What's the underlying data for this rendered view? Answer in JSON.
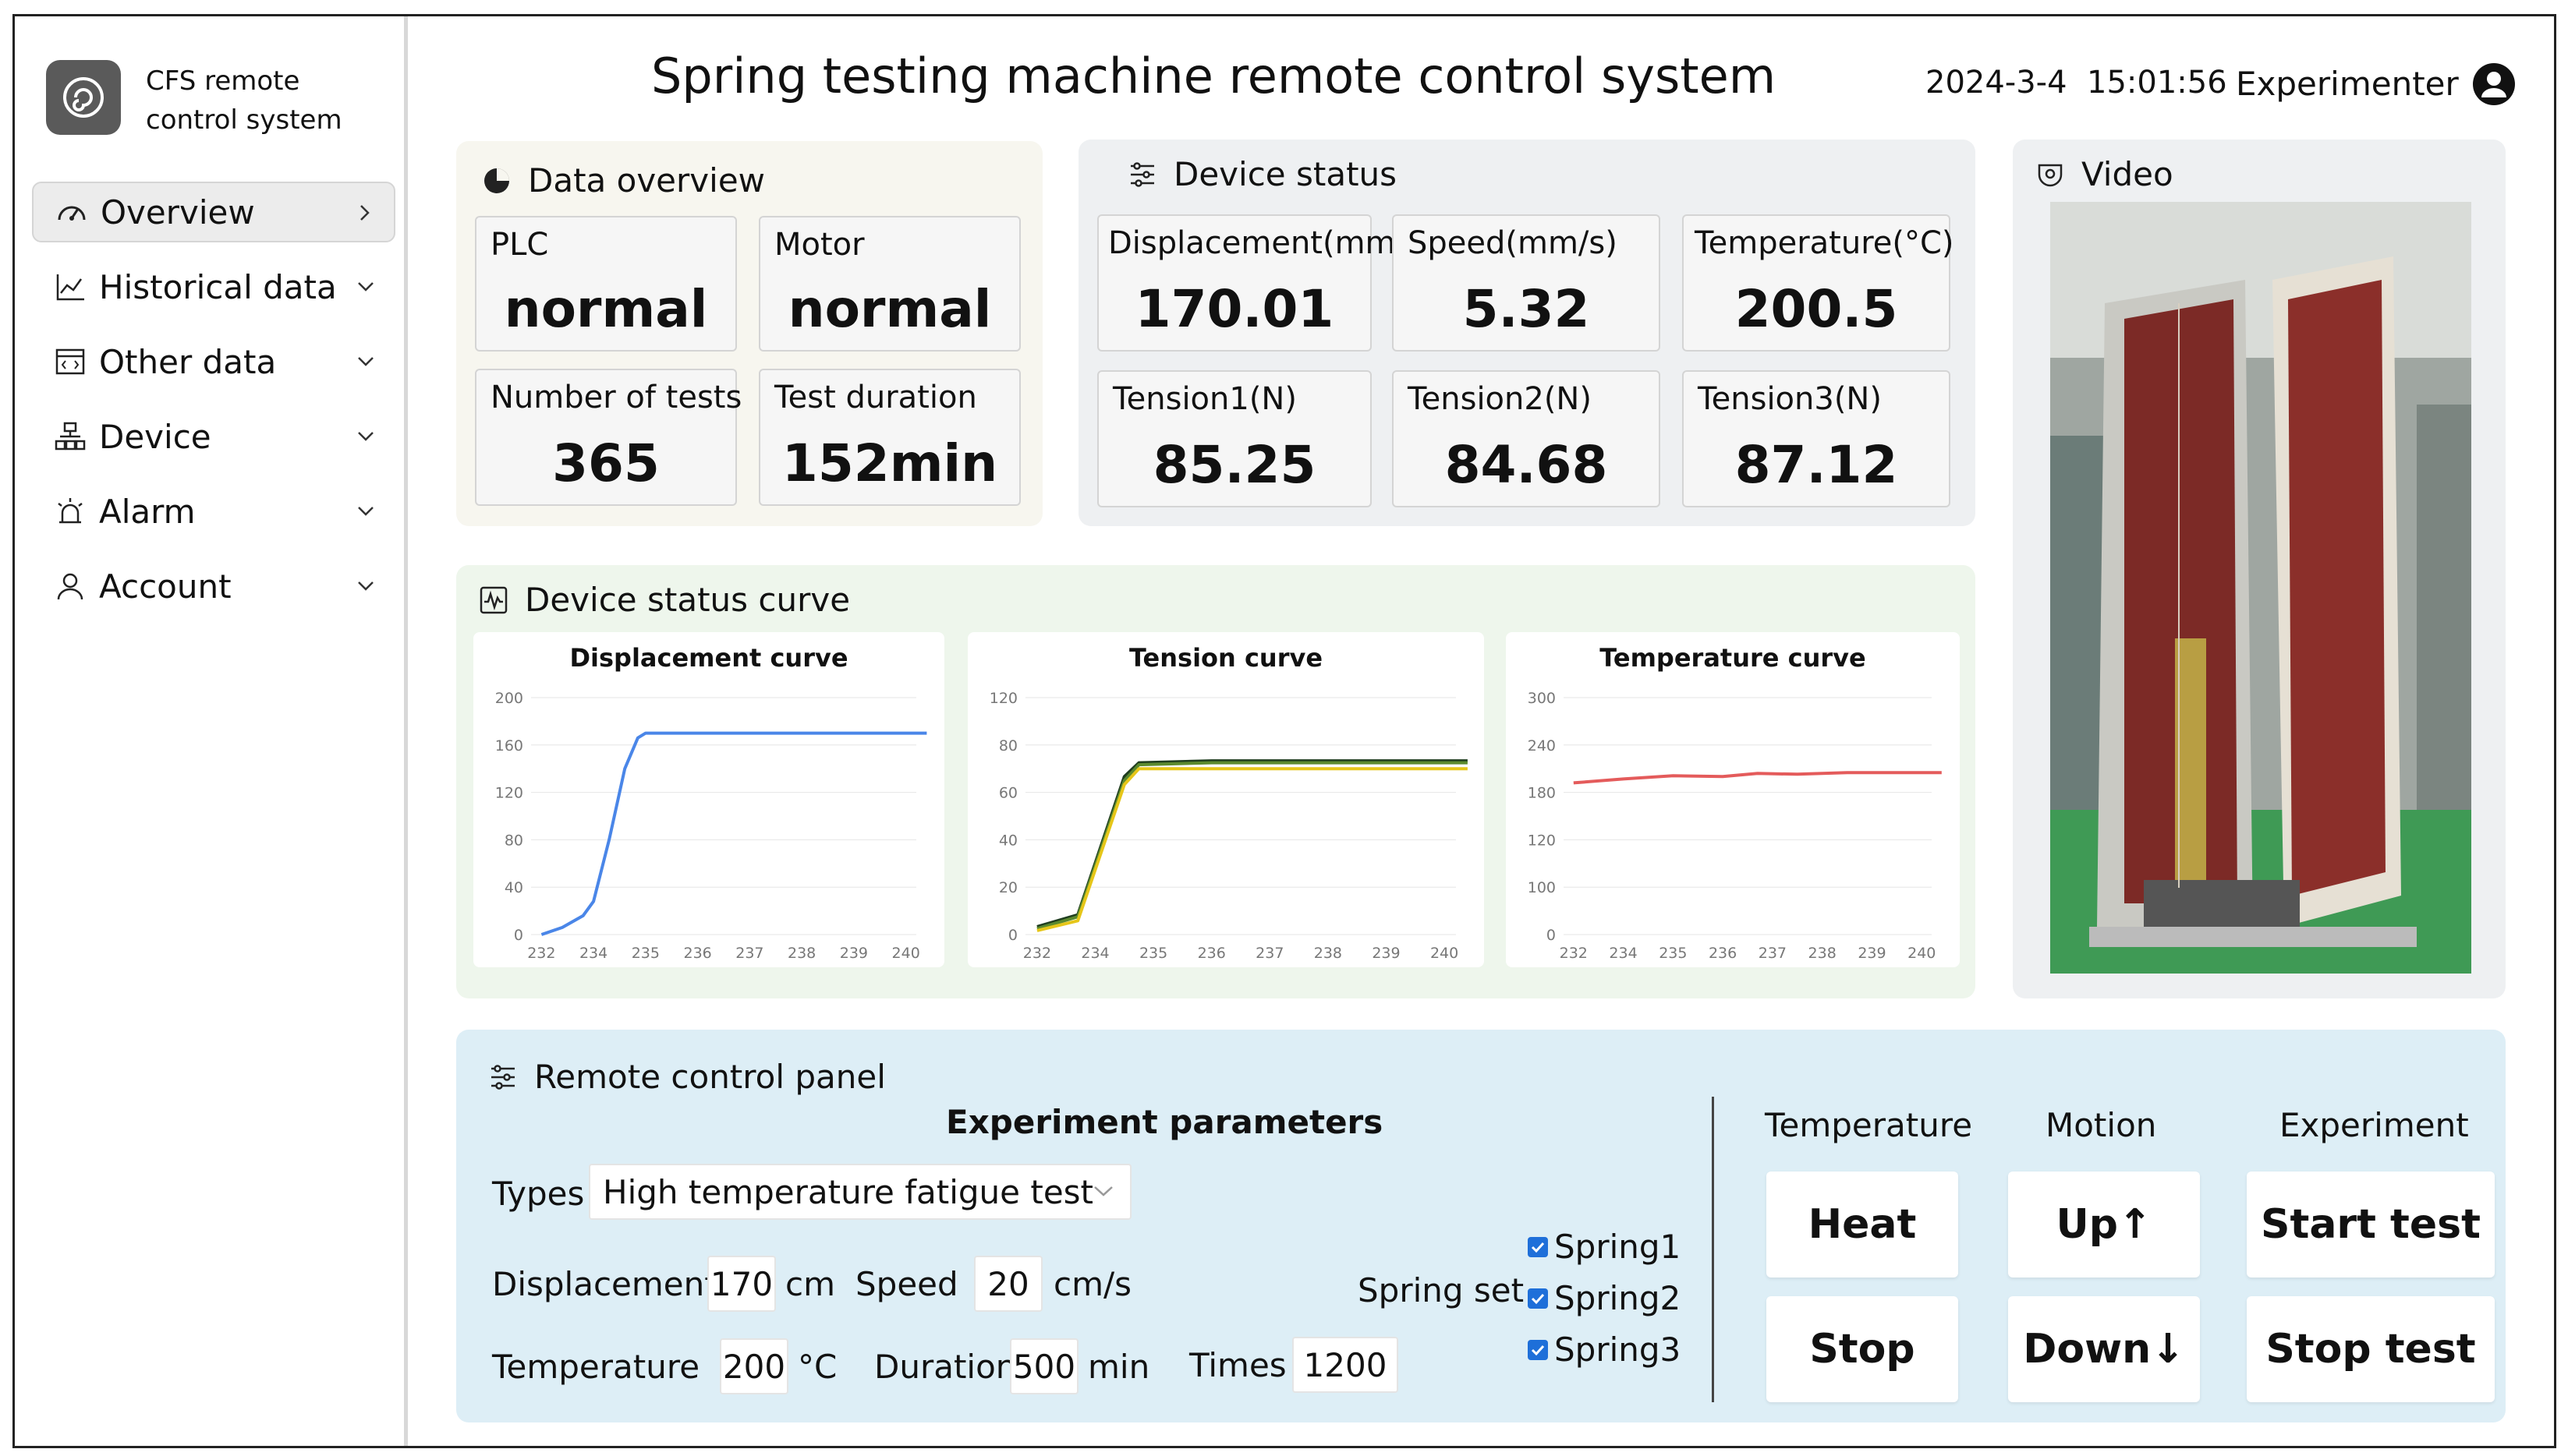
{
  "app": {
    "name": "CFS remote control system",
    "name_line1": "CFS remote",
    "name_line2": "control system",
    "title": "Spring testing machine remote control system"
  },
  "header": {
    "datetime": "2024-3-4  15:01:56",
    "user": "Experimenter"
  },
  "sidebar": {
    "items": [
      {
        "label": "Overview",
        "icon": "gauge-icon"
      },
      {
        "label": "Historical data",
        "icon": "line-chart-icon"
      },
      {
        "label": "Other data",
        "icon": "code-window-icon"
      },
      {
        "label": "Device",
        "icon": "network-icon"
      },
      {
        "label": "Alarm",
        "icon": "alarm-icon"
      },
      {
        "label": "Account",
        "icon": "user-icon"
      }
    ]
  },
  "data_overview": {
    "title": "Data overview",
    "cards": [
      {
        "label": "PLC",
        "value": "normal"
      },
      {
        "label": "Motor",
        "value": "normal"
      },
      {
        "label": "Number of tests",
        "value": "365"
      },
      {
        "label": "Test duration",
        "value": "152min"
      }
    ]
  },
  "device_status": {
    "title": "Device status",
    "cards": [
      {
        "label": "Displacement(mm)",
        "value": "170.01"
      },
      {
        "label": "Speed(mm/s)",
        "value": "5.32"
      },
      {
        "label": "Temperature(°C)",
        "value": "200.5"
      },
      {
        "label": "Tension1(N)",
        "value": "85.25"
      },
      {
        "label": "Tension2(N)",
        "value": "84.68"
      },
      {
        "label": "Tension3(N)",
        "value": "87.12"
      }
    ]
  },
  "video": {
    "title": "Video"
  },
  "curves": {
    "title": "Device status curve"
  },
  "chart_data": [
    {
      "type": "line",
      "title": "Displacement curve",
      "x_ticks": [
        "232",
        "234",
        "235",
        "236",
        "237",
        "238",
        "239",
        "240"
      ],
      "ylim": [
        0,
        200
      ],
      "y_ticks": [
        0,
        40,
        80,
        120,
        160,
        200
      ],
      "series": [
        {
          "name": "Displacement",
          "color": "#4a86e8",
          "points": [
            [
              0,
              0
            ],
            [
              0.4,
              6
            ],
            [
              0.8,
              16
            ],
            [
              1.0,
              28
            ],
            [
              1.3,
              80
            ],
            [
              1.6,
              140
            ],
            [
              1.85,
              166
            ],
            [
              2.0,
              170
            ],
            [
              2.5,
              170
            ],
            [
              4,
              170
            ],
            [
              7.4,
              170
            ]
          ]
        }
      ]
    },
    {
      "type": "line",
      "title": "Tension curve",
      "x_ticks": [
        "232",
        "234",
        "235",
        "236",
        "237",
        "238",
        "239",
        "240"
      ],
      "ylim": [
        0,
        120
      ],
      "y_ticks": [
        0,
        20,
        40,
        60,
        80,
        120
      ],
      "series": [
        {
          "name": "Tension1",
          "color": "#1f3d1f",
          "points": [
            [
              0,
              4
            ],
            [
              0.7,
              10
            ],
            [
              1.5,
              80
            ],
            [
              1.75,
              87
            ],
            [
              3,
              88
            ],
            [
              4.5,
              88
            ],
            [
              7.4,
              88
            ]
          ]
        },
        {
          "name": "Tension2",
          "color": "#5b8a2e",
          "points": [
            [
              0,
              3
            ],
            [
              0.7,
              9
            ],
            [
              1.5,
              78
            ],
            [
              1.75,
              86
            ],
            [
              3,
              87
            ],
            [
              4.5,
              87
            ],
            [
              7.4,
              87
            ]
          ]
        },
        {
          "name": "Tension3",
          "color": "#e6c619",
          "points": [
            [
              0,
              2
            ],
            [
              0.7,
              7
            ],
            [
              1.5,
              76
            ],
            [
              1.75,
              84
            ],
            [
              3,
              84
            ],
            [
              4.5,
              84
            ],
            [
              7.4,
              84
            ]
          ]
        }
      ]
    },
    {
      "type": "line",
      "title": "Temperature curve",
      "x_ticks": [
        "232",
        "234",
        "235",
        "236",
        "237",
        "238",
        "239",
        "240"
      ],
      "ylim": [
        0,
        300
      ],
      "y_ticks": [
        0,
        100,
        120,
        180,
        240,
        300
      ],
      "series": [
        {
          "name": "Temperature",
          "color": "#e45b5b",
          "points": [
            [
              0,
              192
            ],
            [
              1,
              197
            ],
            [
              2,
              201
            ],
            [
              3,
              200
            ],
            [
              3.7,
              204
            ],
            [
              4.5,
              203
            ],
            [
              5.5,
              205
            ],
            [
              6.5,
              205
            ],
            [
              7.4,
              205
            ]
          ]
        }
      ]
    }
  ],
  "control": {
    "title": "Remote control panel",
    "params_title": "Experiment parameters",
    "types_label": "Types",
    "types_value": "High temperature fatigue test",
    "displacement_label": "Displacement",
    "displacement_value": "170",
    "displacement_unit": "cm",
    "speed_label": "Speed",
    "speed_value": "20",
    "speed_unit": "cm/s",
    "temperature_label": "Temperature",
    "temperature_value": "200",
    "temperature_unit": "°C",
    "duration_label": "Duration",
    "duration_value": "500",
    "duration_unit": "min",
    "times_label": "Times",
    "times_value": "1200",
    "spring_set_label": "Spring set",
    "springs": [
      "Spring1",
      "Spring2",
      "Spring3"
    ],
    "temperature_header": "Temperature",
    "motion_header": "Motion",
    "experiment_header": "Experiment",
    "heat_label": "Heat",
    "stop_label": "Stop",
    "up_label": "Up↑",
    "down_label": "Down↓",
    "start_test_label": "Start test",
    "stop_test_label": "Stop test"
  }
}
